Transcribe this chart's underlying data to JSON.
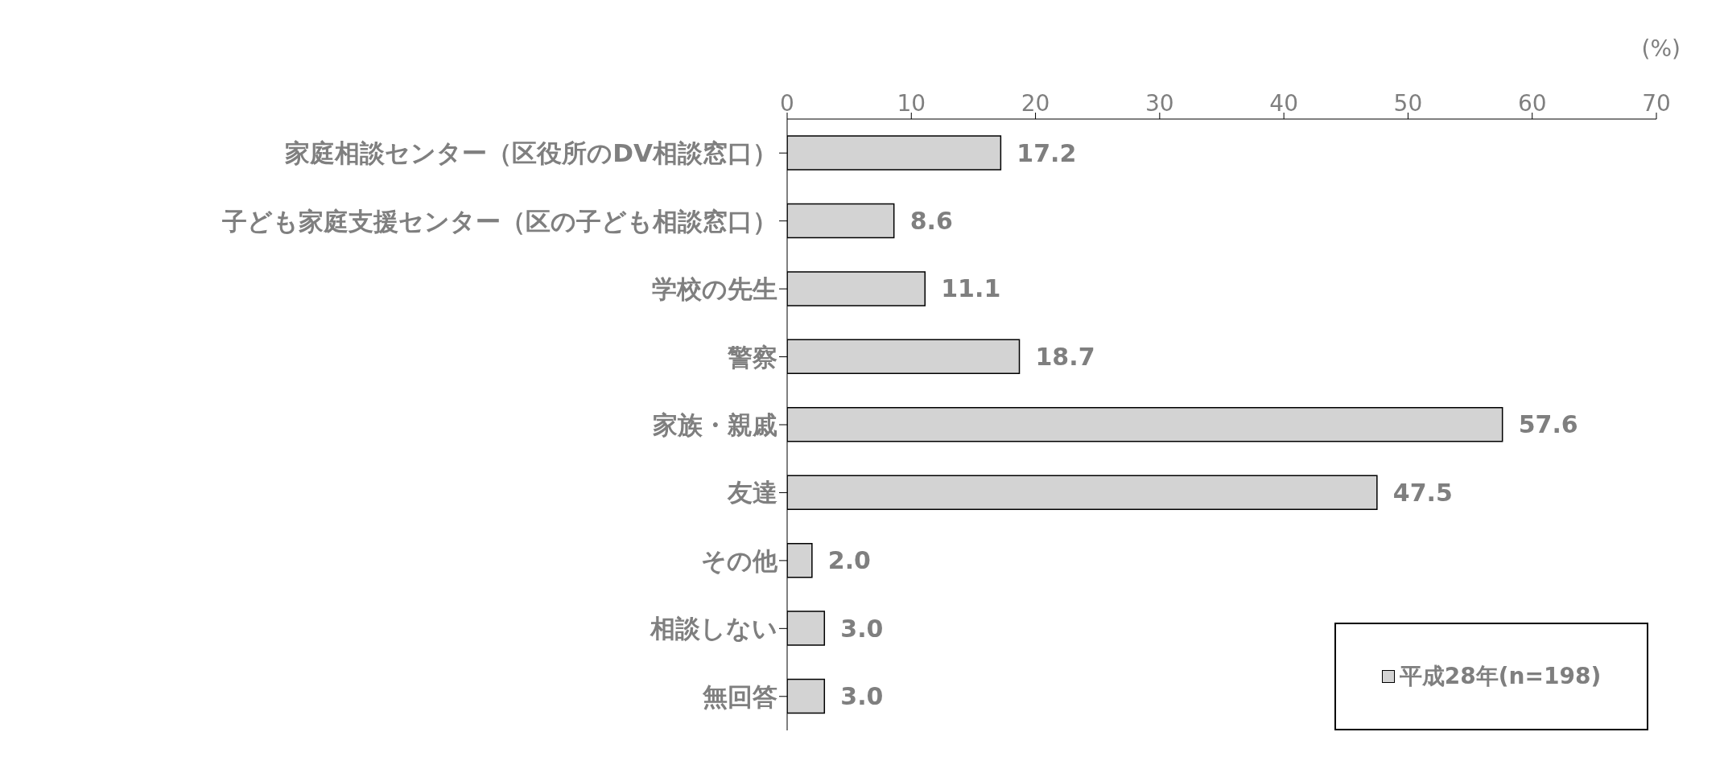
{
  "chart_data": {
    "type": "bar",
    "orientation": "horizontal",
    "xlabel": "(%)",
    "categories": [
      "家庭相談センター（区役所のDV相談窓口）",
      "子ども家庭支援センター（区の子ども相談窓口）",
      "学校の先生",
      "警察",
      "家族・親戚",
      "友達",
      "その他",
      "相談しない",
      "無回答"
    ],
    "series": [
      {
        "name": "平成28年(n=198)",
        "color": "#d3d3d3",
        "values": [
          17.2,
          8.6,
          11.1,
          18.7,
          57.6,
          47.5,
          2.0,
          3.0,
          3.0
        ]
      }
    ],
    "xlim": [
      0,
      70
    ],
    "xticks": [
      0,
      10,
      20,
      30,
      40,
      50,
      60,
      70
    ],
    "value_labels": [
      "17.2",
      "8.6",
      "11.1",
      "18.7",
      "57.6",
      "47.5",
      "2.0",
      "3.0",
      "3.0"
    ],
    "grid": false,
    "legend": "bottom right"
  }
}
